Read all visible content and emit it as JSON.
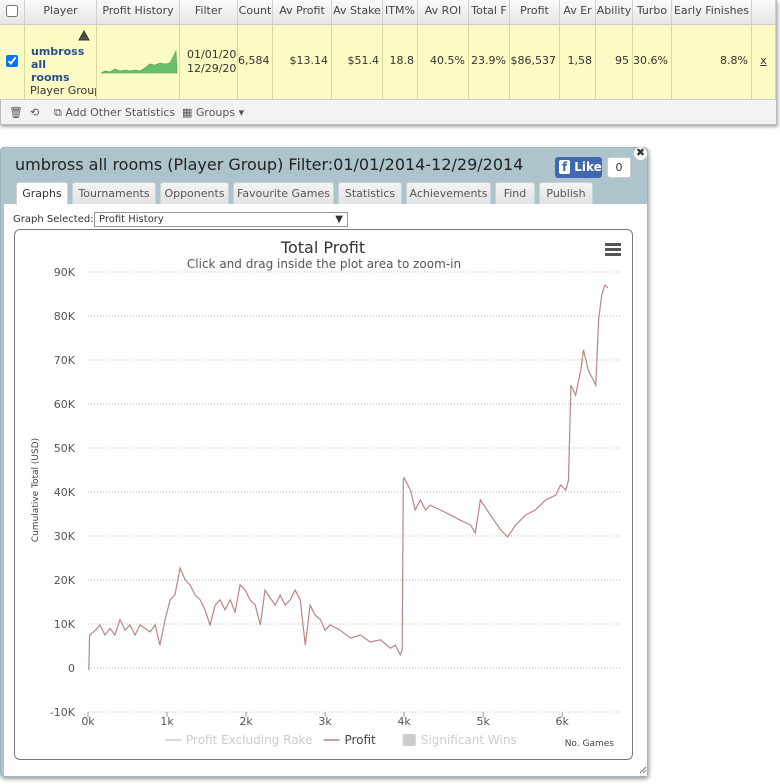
{
  "table": {
    "headers": [
      "Player",
      "Profit History",
      "Filter",
      "Count",
      "Av Profit",
      "Av Stake",
      "ITM%",
      "Av ROI",
      "Total F",
      "Profit",
      "Av Er",
      "Ability",
      "Turbo",
      "Early Finishes"
    ],
    "row": {
      "player": "umbross all rooms",
      "player_type": "Player Group",
      "filter": [
        "01/01/20",
        "12/29/20"
      ],
      "cells": [
        "6,584",
        "$13.14",
        "$51.4",
        "18.8",
        "40.5%",
        "23.9%",
        "$86,537",
        "1,58",
        "95",
        "30.6%",
        "8.8%"
      ],
      "remove": "x"
    }
  },
  "toolbar": {
    "add": "Add Other Statistics",
    "groups": "Groups"
  },
  "panel": {
    "title": "umbross all rooms (Player Group) Filter:01/01/2014-12/29/2014",
    "like": "Like",
    "like_count": "0",
    "tabs": [
      "Graphs",
      "Tournaments",
      "Opponents",
      "Favourite Games",
      "Statistics",
      "Achievements",
      "Find",
      "Publish"
    ],
    "graph_selected_label": "Graph Selected:",
    "graph_selected": "Profit History"
  },
  "chart_data": {
    "type": "line",
    "title": "Total Profit",
    "subtitle": "Click and drag inside the plot area to zoom-in",
    "y_label": "Cumulative Total (USD)",
    "x_label": "No. Games",
    "xlim": [
      0,
      6630
    ],
    "xticks": [
      {
        "value": 0,
        "label": "0k"
      },
      {
        "value": 1000,
        "label": "1k"
      },
      {
        "value": 2000,
        "label": "2k"
      },
      {
        "value": 3000,
        "label": "3k"
      },
      {
        "value": 4000,
        "label": "4k"
      },
      {
        "value": 5000,
        "label": "5k"
      },
      {
        "value": 6000,
        "label": "6k"
      }
    ],
    "ylim": [
      -10000,
      90000
    ],
    "yticks": [
      {
        "value": -10000,
        "label": "-10K"
      },
      0,
      {
        "value": 10000,
        "label": "10K"
      },
      {
        "value": 20000,
        "label": "20K"
      },
      {
        "value": 30000,
        "label": "30K"
      },
      {
        "value": 40000,
        "label": "40K"
      },
      {
        "value": 50000,
        "label": "50K"
      },
      {
        "value": 60000,
        "label": "60K"
      },
      {
        "value": 70000,
        "label": "70K"
      },
      {
        "value": 80000,
        "label": "80K"
      },
      {
        "value": 90000,
        "label": "90K"
      }
    ],
    "grid": true,
    "hidden_series": [
      "Profit Excluding Rake",
      "Significant Wins"
    ],
    "x": [
      10,
      20,
      90,
      150,
      215,
      280,
      340,
      405,
      470,
      530,
      595,
      660,
      720,
      785,
      850,
      910,
      975,
      1040,
      1100,
      1165,
      1230,
      1290,
      1355,
      1420,
      1480,
      1545,
      1610,
      1670,
      1735,
      1800,
      1860,
      1925,
      1990,
      2050,
      2115,
      2180,
      2240,
      2305,
      2370,
      2430,
      2495,
      2560,
      2620,
      2685,
      2750,
      2810,
      2875,
      2940,
      3000,
      3065,
      3190,
      3320,
      3445,
      3570,
      3700,
      3825,
      3890,
      3950,
      3975,
      3990,
      4000,
      4080,
      4140,
      4205,
      4270,
      4330,
      4460,
      4585,
      4710,
      4840,
      4900,
      4965,
      5090,
      5220,
      5310,
      5410,
      5540,
      5660,
      5790,
      5920,
      5980,
      6045,
      6080,
      6110,
      6170,
      6235,
      6270,
      6330,
      6425,
      6460,
      6500,
      6540,
      6580
    ],
    "series": [
      {
        "name": "Profit",
        "color": "#b98585",
        "values": [
          -500,
          7500,
          8500,
          9800,
          7500,
          9000,
          7500,
          11000,
          8600,
          9800,
          7500,
          9800,
          9000,
          8200,
          9800,
          5200,
          11000,
          15500,
          16600,
          22700,
          20000,
          18900,
          16600,
          15500,
          13200,
          9800,
          14300,
          15500,
          13200,
          15500,
          12700,
          18900,
          17700,
          15500,
          14300,
          9800,
          17700,
          15900,
          14300,
          16600,
          14300,
          15500,
          17700,
          15500,
          5200,
          14300,
          12000,
          11000,
          8600,
          9800,
          8600,
          6800,
          7500,
          5900,
          6400,
          4500,
          5200,
          3000,
          4100,
          42700,
          43200,
          40400,
          35900,
          38200,
          35900,
          37000,
          35900,
          34800,
          33600,
          32500,
          30700,
          38200,
          34800,
          31400,
          29800,
          32500,
          34800,
          35900,
          38200,
          39300,
          41600,
          40400,
          42700,
          64300,
          62000,
          67700,
          72300,
          67700,
          64300,
          79100,
          84800,
          87000,
          86400
        ]
      }
    ]
  }
}
